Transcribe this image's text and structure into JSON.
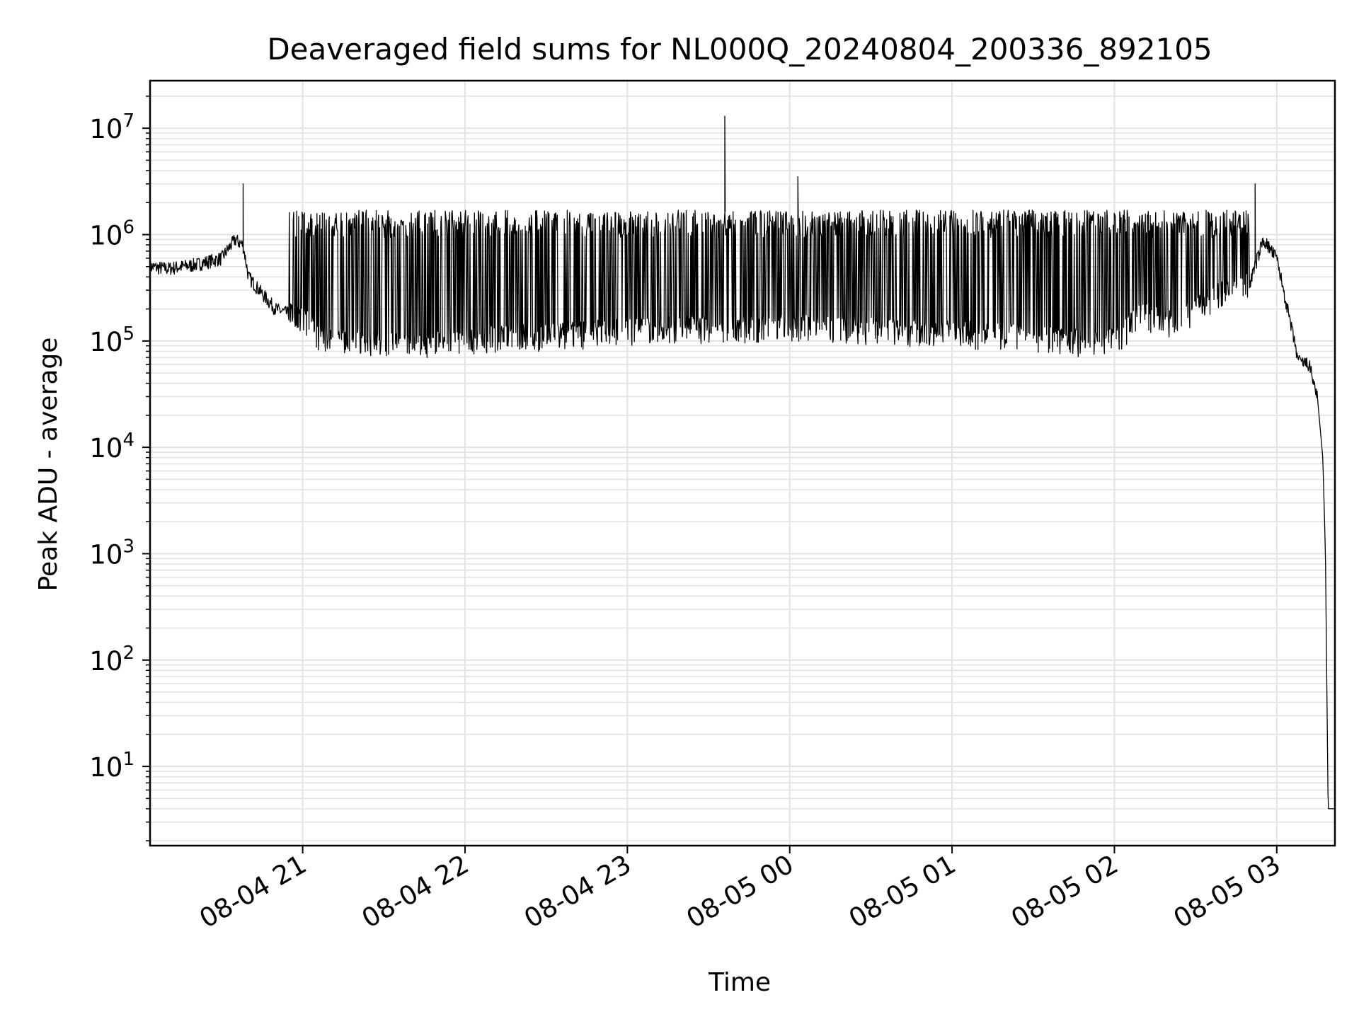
{
  "chart_data": {
    "type": "line",
    "title": "Deaveraged field sums for NL000Q_20240804_200336_892105",
    "xlabel": "Time",
    "ylabel": "Peak ADU - average",
    "yscale": "log",
    "ylim": [
      1.8,
      28000000
    ],
    "xlim": [
      "2024-08-04 20:03:36",
      "2024-08-05 03:21:30"
    ],
    "grid": true,
    "line_color": "#000000",
    "x_ticks": [
      {
        "value": "2024-08-04 21:00",
        "label": "08-04 21"
      },
      {
        "value": "2024-08-04 22:00",
        "label": "08-04 22"
      },
      {
        "value": "2024-08-04 23:00",
        "label": "08-04 23"
      },
      {
        "value": "2024-08-05 00:00",
        "label": "08-05 00"
      },
      {
        "value": "2024-08-05 01:00",
        "label": "08-05 01"
      },
      {
        "value": "2024-08-05 02:00",
        "label": "08-05 02"
      },
      {
        "value": "2024-08-05 03:00",
        "label": "08-05 03"
      }
    ],
    "y_ticks": [
      {
        "value": 10,
        "base": "10",
        "exp": "1"
      },
      {
        "value": 100,
        "base": "10",
        "exp": "2"
      },
      {
        "value": 1000,
        "base": "10",
        "exp": "3"
      },
      {
        "value": 10000,
        "base": "10",
        "exp": "4"
      },
      {
        "value": 100000,
        "base": "10",
        "exp": "5"
      },
      {
        "value": 1000000,
        "base": "10",
        "exp": "6"
      },
      {
        "value": 10000000,
        "base": "10",
        "exp": "7"
      }
    ],
    "series": [
      {
        "x": [
          "2024-08-04 20:03:36",
          "2024-08-04 20:10",
          "2024-08-04 20:20",
          "2024-08-04 20:30",
          "2024-08-04 20:35",
          "2024-08-04 20:38",
          "2024-08-04 20:40",
          "2024-08-04 20:45",
          "2024-08-04 20:50",
          "2024-08-04 20:55",
          "2024-08-04 21:00",
          "2024-08-04 21:05",
          "2024-08-04 21:10",
          "2024-08-04 21:20",
          "2024-08-04 21:30",
          "2024-08-04 21:40",
          "2024-08-04 21:50",
          "2024-08-04 22:00",
          "2024-08-04 22:15",
          "2024-08-04 22:30",
          "2024-08-04 22:45",
          "2024-08-04 23:00",
          "2024-08-04 23:15",
          "2024-08-04 23:30",
          "2024-08-04 23:45",
          "2024-08-05 00:00",
          "2024-08-05 00:15",
          "2024-08-05 00:30",
          "2024-08-05 00:45",
          "2024-08-05 01:00",
          "2024-08-05 01:15",
          "2024-08-05 01:30",
          "2024-08-05 01:45",
          "2024-08-05 02:00",
          "2024-08-05 02:10",
          "2024-08-05 02:20",
          "2024-08-05 02:30",
          "2024-08-05 02:40",
          "2024-08-05 02:50",
          "2024-08-05 02:55",
          "2024-08-05 03:00",
          "2024-08-05 03:05",
          "2024-08-05 03:08",
          "2024-08-05 03:12",
          "2024-08-05 03:15",
          "2024-08-05 03:17",
          "2024-08-05 03:18",
          "2024-08-05 03:19",
          "2024-08-05 03:21"
        ],
        "y": [
          500000,
          480000,
          520000,
          600000,
          900000,
          800000,
          400000,
          280000,
          200000,
          180000,
          170000,
          120000,
          100000,
          100000,
          95000,
          90000,
          95000,
          100000,
          110000,
          115000,
          120000,
          125000,
          130000,
          135000,
          135000,
          140000,
          135000,
          130000,
          125000,
          120000,
          115000,
          110000,
          100000,
          100000,
          180000,
          150000,
          200000,
          300000,
          350000,
          900000,
          600000,
          150000,
          65000,
          60000,
          30000,
          8000,
          1000,
          4,
          4
        ],
        "spikes": [
          {
            "x": "2024-08-04 20:38",
            "y": 3000000
          },
          {
            "x": "2024-08-04 23:36",
            "y": 13000000
          },
          {
            "x": "2024-08-05 00:03",
            "y": 3500000
          },
          {
            "x": "2024-08-05 02:52",
            "y": 3000000
          }
        ],
        "oscillation_band": {
          "from": "2024-08-04 20:55",
          "to": "2024-08-05 02:50",
          "upper": 1700000,
          "lower": 70000
        }
      }
    ]
  }
}
